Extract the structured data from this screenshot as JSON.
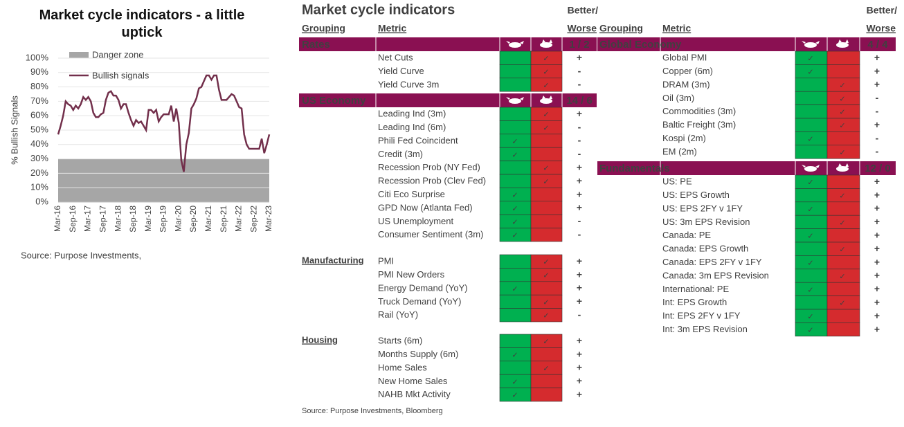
{
  "chart_data": {
    "type": "line",
    "title": "Market cycle indicators - a little uptick",
    "y_label": "% Bullish Signals",
    "categories": [
      "Mar-16",
      null,
      null,
      null,
      null,
      null,
      "Sep-16",
      null,
      null,
      null,
      null,
      null,
      "Mar-17",
      null,
      null,
      null,
      null,
      null,
      "Sep-17",
      null,
      null,
      null,
      null,
      null,
      "Mar-18",
      null,
      null,
      null,
      null,
      null,
      "Sep-18",
      null,
      null,
      null,
      null,
      null,
      "Mar-19",
      null,
      null,
      null,
      null,
      null,
      "Sep-19",
      null,
      null,
      null,
      null,
      null,
      "Mar-20",
      null,
      null,
      null,
      null,
      null,
      "Sep-20",
      null,
      null,
      null,
      null,
      null,
      "Mar-21",
      null,
      null,
      null,
      null,
      null,
      "Sep-21",
      null,
      null,
      null,
      null,
      null,
      "Mar-22",
      null,
      null,
      null,
      null,
      null,
      "Sep-22",
      null,
      null,
      null,
      null,
      null,
      "Mar-23"
    ],
    "series": [
      {
        "name": "Bullish signals",
        "color": "#722f4b",
        "values": [
          47,
          53,
          60,
          70,
          68,
          67,
          64,
          67,
          65,
          68,
          73,
          71,
          73,
          70,
          62,
          59,
          59,
          61,
          62,
          71,
          76,
          77,
          74,
          74,
          71,
          65,
          68,
          68,
          62,
          57,
          53,
          57,
          55,
          56,
          53,
          50,
          64,
          64,
          62,
          64,
          56,
          59,
          61,
          61,
          61,
          67,
          56,
          65,
          55,
          29,
          21,
          40,
          48,
          65,
          68,
          72,
          79,
          80,
          84,
          88,
          88,
          85,
          88,
          88,
          78,
          71,
          71,
          71,
          73,
          75,
          74,
          70,
          66,
          65,
          47,
          40,
          37,
          37,
          37,
          37,
          37,
          44,
          34,
          40,
          47
        ]
      }
    ],
    "bands": [
      {
        "name": "Danger zone",
        "from": 0,
        "to": 30,
        "color": "#a6a6a6"
      }
    ],
    "ylim": [
      0,
      100
    ],
    "yticks": [
      {
        "value": 0,
        "label": "0%"
      },
      {
        "value": 10,
        "label": "10%"
      },
      {
        "value": 20,
        "label": "20%"
      },
      {
        "value": 30,
        "label": "30%"
      },
      {
        "value": 40,
        "label": "40%"
      },
      {
        "value": 50,
        "label": "50%"
      },
      {
        "value": 60,
        "label": "60%"
      },
      {
        "value": 70,
        "label": "70%"
      },
      {
        "value": 80,
        "label": "80%"
      },
      {
        "value": 90,
        "label": "90%"
      },
      {
        "value": 100,
        "label": "100%"
      }
    ],
    "grid": true,
    "source": "Source: Purpose Investments,"
  },
  "table": {
    "title": "Market cycle indicators",
    "headers": {
      "grouping": "Grouping",
      "metric": "Metric",
      "better": "Better/",
      "worse": "Worse"
    },
    "mark": "✓",
    "panels": [
      {
        "sections": [
          {
            "name": "Rates",
            "score": "1 / 2",
            "rows": [
              {
                "metric": "Net Cuts",
                "signal": "bear",
                "direction": "+"
              },
              {
                "metric": "Yield Curve",
                "signal": "bear",
                "direction": "-"
              },
              {
                "metric": "Yield Curve 3m",
                "signal": "bear",
                "direction": "-"
              }
            ]
          },
          {
            "name": "US Economy",
            "score": "14 / 6",
            "rows": [
              {
                "metric": "Leading Ind (3m)",
                "signal": "bear",
                "direction": "+"
              },
              {
                "metric": "Leading Ind (6m)",
                "signal": "bear",
                "direction": "-"
              },
              {
                "metric": "Phili Fed Coincident",
                "signal": "bull",
                "direction": "-"
              },
              {
                "metric": "Credit (3m)",
                "signal": "bull",
                "direction": "-"
              },
              {
                "metric": "Recession Prob (NY Fed)",
                "signal": "bear",
                "direction": "+"
              },
              {
                "metric": "Recession Prob (Clev Fed)",
                "signal": "bear",
                "direction": "+"
              },
              {
                "metric": "Citi Eco Surprise",
                "signal": "bull",
                "direction": "+"
              },
              {
                "metric": "GPD Now (Atlanta Fed)",
                "signal": "bull",
                "direction": "+"
              },
              {
                "metric": "US Unemployment",
                "signal": "bull",
                "direction": "-"
              },
              {
                "metric": "Consumer Sentiment (3m)",
                "signal": "bull",
                "direction": "-"
              }
            ]
          },
          {
            "name": "Manufacturing",
            "rows": [
              {
                "metric": "PMI",
                "signal": "bear",
                "direction": "+"
              },
              {
                "metric": "PMI New Orders",
                "signal": "bear",
                "direction": "+"
              },
              {
                "metric": "Energy Demand (YoY)",
                "signal": "bull",
                "direction": "+"
              },
              {
                "metric": "Truck Demand (YoY)",
                "signal": "bear",
                "direction": "+"
              },
              {
                "metric": "Rail (YoY)",
                "signal": "bear",
                "direction": "-"
              }
            ]
          },
          {
            "name": "Housing",
            "rows": [
              {
                "metric": "Starts (6m)",
                "signal": "bear",
                "direction": "+"
              },
              {
                "metric": "Months Supply (6m)",
                "signal": "bull",
                "direction": "+"
              },
              {
                "metric": "Home Sales",
                "signal": "bear",
                "direction": "+"
              },
              {
                "metric": "New Home Sales",
                "signal": "bull",
                "direction": "+"
              },
              {
                "metric": "NAHB Mkt Activity",
                "signal": "bull",
                "direction": "+"
              }
            ]
          }
        ]
      },
      {
        "sections": [
          {
            "name": "Global Economy",
            "score": "4 / 4",
            "rows": [
              {
                "metric": "Global PMI",
                "signal": "bull",
                "direction": "+"
              },
              {
                "metric": "Copper (6m)",
                "signal": "bull",
                "direction": "+"
              },
              {
                "metric": "DRAM (3m)",
                "signal": "bear",
                "direction": "+"
              },
              {
                "metric": "Oil (3m)",
                "signal": "bear",
                "direction": "-"
              },
              {
                "metric": "Commodities (3m)",
                "signal": "bear",
                "direction": "-"
              },
              {
                "metric": "Baltic Freight (3m)",
                "signal": "bear",
                "direction": "+"
              },
              {
                "metric": "Kospi (2m)",
                "signal": "bull",
                "direction": "-"
              },
              {
                "metric": "EM (2m)",
                "signal": "bear",
                "direction": "-"
              }
            ]
          },
          {
            "name": "Fundamentals",
            "score": "12 / 0",
            "rows": [
              {
                "metric": "US: PE",
                "signal": "bull",
                "direction": "+"
              },
              {
                "metric": "US: EPS Growth",
                "signal": "bear",
                "direction": "+"
              },
              {
                "metric": "US: EPS 2FY v 1FY",
                "signal": "bull",
                "direction": "+"
              },
              {
                "metric": "US: 3m EPS Revision",
                "signal": "bear",
                "direction": "+"
              },
              {
                "metric": "Canada: PE",
                "signal": "bull",
                "direction": "+"
              },
              {
                "metric": "Canada: EPS Growth",
                "signal": "bear",
                "direction": "+"
              },
              {
                "metric": "Canada: EPS 2FY v 1FY",
                "signal": "bull",
                "direction": "+"
              },
              {
                "metric": "Canada: 3m EPS Revision",
                "signal": "bear",
                "direction": "+"
              },
              {
                "metric": "International: PE",
                "signal": "bull",
                "direction": "+"
              },
              {
                "metric": "Int: EPS Growth",
                "signal": "bear",
                "direction": "+"
              },
              {
                "metric": "Int: EPS 2FY v 1FY",
                "signal": "bull",
                "direction": "+"
              },
              {
                "metric": "Int: 3m EPS Revision",
                "signal": "bull",
                "direction": "+"
              }
            ]
          }
        ]
      }
    ],
    "source": "Source: Purpose Investments, Bloomberg"
  }
}
